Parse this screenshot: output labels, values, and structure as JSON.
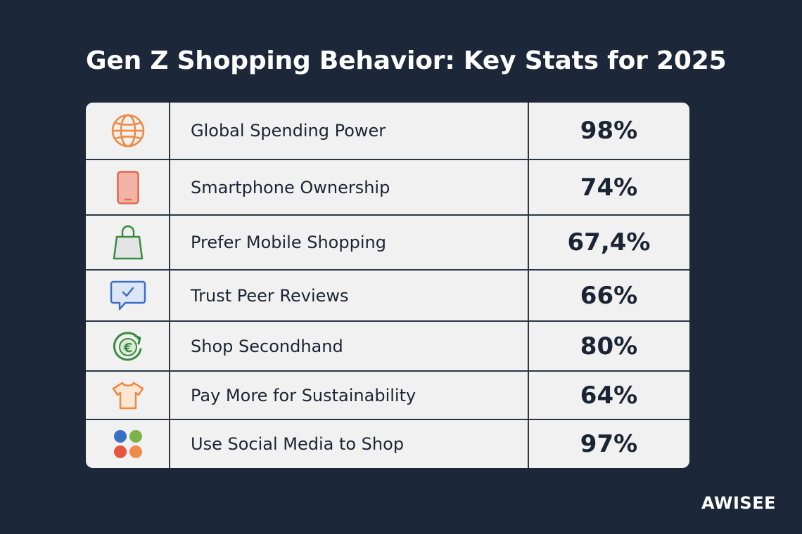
{
  "title": "Gen Z Shopping Behavior: Key Stats for 2025",
  "brand": "AWISEE",
  "rows": [
    {
      "icon": "globe-icon",
      "label": "Global Spending Power",
      "value": "98%"
    },
    {
      "icon": "smartphone-icon",
      "label": "Smartphone Ownership",
      "value": "74%"
    },
    {
      "icon": "shopping-bag-icon",
      "label": "Prefer Mobile Shopping",
      "value": "67,4%"
    },
    {
      "icon": "chat-check-icon",
      "label": "Trust Peer Reviews",
      "value": "66%"
    },
    {
      "icon": "euro-recycle-icon",
      "label": "Shop Secondhand",
      "value": "80%"
    },
    {
      "icon": "tshirt-icon",
      "label": "Pay More for Sustainability",
      "value": "64%"
    },
    {
      "icon": "social-dots-icon",
      "label": "Use Social Media to Shop",
      "value": "97%"
    }
  ],
  "colors": {
    "background": "#1c2839",
    "card": "#f1f1f1",
    "text": "#1b2433",
    "globe": "#f0883e",
    "smartphone": "#e06a4f",
    "bag": "#3a8a3e",
    "chat": "#3a6fc4",
    "euro": "#3a8a3e",
    "tshirt": "#f0883e"
  }
}
